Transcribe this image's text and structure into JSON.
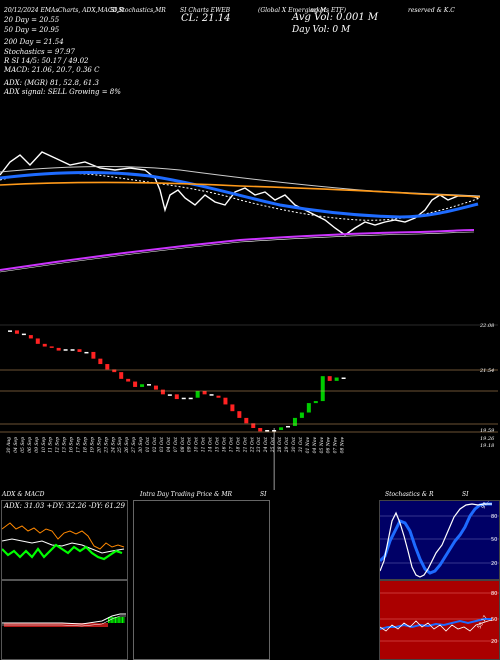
{
  "header": {
    "line1_left": "20/12/2024 EMAs",
    "line1_mid": "Charts, ADX,MACD,R",
    "line1_mid2": "SI,Stochastics,MR",
    "line1_mid3": "SI Charts EWEB",
    "line1_right": "(Global X Emerging M",
    "line1_right2": "arkets ETF)",
    "line1_right3": "reserved & K.C",
    "ema20": "20  Day = 20.55",
    "ema50": "50  Day = 20.95",
    "ema200": "200  Day = 21.54",
    "cl": "CL: 21.14",
    "avg_vol": "Avg Vol: 0.001  M",
    "day_vol": "Day Vol: 0   M",
    "stoch_line": "Stochastics = 97.97",
    "rsi_line": "R         SI 14/5: 50.17 / 49.02",
    "macd_line": "MACD: 21.06, 20.7, 0.36  C",
    "adx_line": "ADX:                        (MGR) 81, 52.8, 61.3",
    "adx_signal": "ADX  signal: SELL Growing = 8%"
  },
  "price_axis": {
    "labels": [
      "22.08",
      "21.54",
      "19.59",
      "19.26",
      "19.18"
    ]
  },
  "x_axis": {
    "labels": [
      "30 Aug",
      "04 Sep",
      "05 Sep",
      "06 Sep",
      "09 Sep",
      "10 Sep",
      "11 Sep",
      "12 Sep",
      "13 Sep",
      "16 Sep",
      "17 Sep",
      "18 Sep",
      "19 Sep",
      "20 Sep",
      "23 Sep",
      "24 Sep",
      "25 Sep",
      "26 Sep",
      "27 Sep",
      "30 Sep",
      "01 Oct",
      "02 Oct",
      "03 Oct",
      "04 Oct",
      "07 Oct",
      "08 Oct",
      "09 Oct",
      "10 Oct",
      "11 Oct",
      "14 Oct",
      "15 Oct",
      "16 Oct",
      "17 Oct",
      "18 Oct",
      "21 Oct",
      "22 Oct",
      "23 Oct",
      "24 Oct",
      "25 Oct",
      "28 Oct",
      "29 Oct",
      "30 Oct",
      "31 Oct",
      "01 Nov",
      "04 Nov",
      "05 Nov",
      "06 Nov",
      "07 Nov",
      "08 Nov"
    ]
  },
  "panels": {
    "adx_title": "ADX  & MACD",
    "adx_values": "ADX: 31.03  +DY: 32.26  -DY: 61.29",
    "intraday_title": "Intra  Day Trading Price  & MR",
    "intraday_title2": "SI",
    "stoch_title": "Stochastics & R",
    "stoch_title2": "SI",
    "stoch_value_label": "97.97",
    "stoch_ticks": [
      "80",
      "50",
      "20"
    ],
    "rsi_ticks": [
      "80",
      "50",
      "20"
    ],
    "rsi_value_label": "50.17"
  },
  "colors": {
    "background": "#000000",
    "ema20": "#ffffff",
    "ema50": "#1e6bff",
    "ema200": "#ff9a1a",
    "bollinger": "#ffffff",
    "lower_band": "#cc33ff",
    "up_candle": "#00cc00",
    "down_candle": "#ff2222",
    "neutral_candle": "#ffffff",
    "stoch_panel": "#000066",
    "rsi_panel": "#aa0000",
    "plus_di": "#00ff00",
    "minus_di": "#ff8800",
    "adx": "#ffffff"
  },
  "chart_data": {
    "type": "line",
    "x": [
      1,
      2,
      3,
      4,
      5,
      6,
      7,
      8,
      9,
      10,
      11,
      12,
      13,
      14,
      15,
      16,
      17,
      18,
      19,
      20,
      21,
      22,
      23,
      24,
      25,
      26,
      27,
      28,
      29,
      30,
      31,
      32,
      33,
      34,
      35,
      36,
      37,
      38,
      39,
      40,
      41,
      42,
      43,
      44,
      45,
      46,
      47,
      48,
      49
    ],
    "candles_close": [
      22.0,
      21.95,
      21.93,
      21.88,
      21.8,
      21.76,
      21.74,
      21.7,
      21.72,
      21.72,
      21.68,
      21.68,
      21.58,
      21.5,
      21.42,
      21.38,
      21.28,
      21.24,
      21.16,
      21.2,
      21.18,
      21.12,
      21.05,
      21.05,
      20.98,
      21.0,
      21.0,
      21.1,
      21.05,
      21.03,
      21.0,
      20.9,
      20.8,
      20.7,
      20.62,
      20.55,
      20.5,
      20.52,
      20.52,
      20.56,
      20.58,
      20.7,
      20.78,
      20.92,
      20.95,
      21.32,
      21.25,
      21.3,
      21.3
    ],
    "price_axis_labels": [
      22.08,
      21.54,
      19.59,
      19.26,
      19.18
    ],
    "series": []
  }
}
